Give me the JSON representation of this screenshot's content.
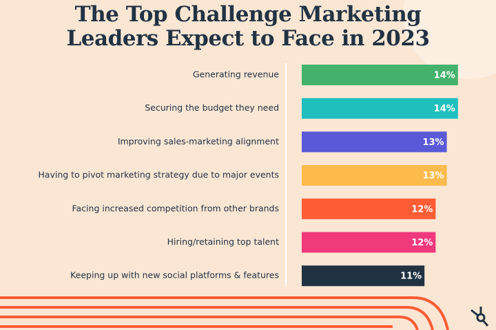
{
  "chart_data": {
    "type": "bar",
    "orientation": "horizontal",
    "title": "The Top Challenge Marketing Leaders Expect to Face in 2023",
    "categories": [
      "Generating revenue",
      "Securing the budget they need",
      "Improving sales-marketing alignment",
      "Having to pivot marketing strategy due to major events",
      "Facing increased competition from other brands",
      "Hiring/retaining top talent",
      "Keeping up with new social platforms & features"
    ],
    "values": [
      14,
      14,
      13,
      13,
      12,
      12,
      11
    ],
    "value_labels": [
      "14%",
      "14%",
      "13%",
      "13%",
      "12%",
      "12%",
      "11%"
    ],
    "colors": [
      "#45b26b",
      "#1fbfbd",
      "#5a5ad8",
      "#fdbb4c",
      "#fe5c35",
      "#f03a7c",
      "#213343"
    ]
  }
}
